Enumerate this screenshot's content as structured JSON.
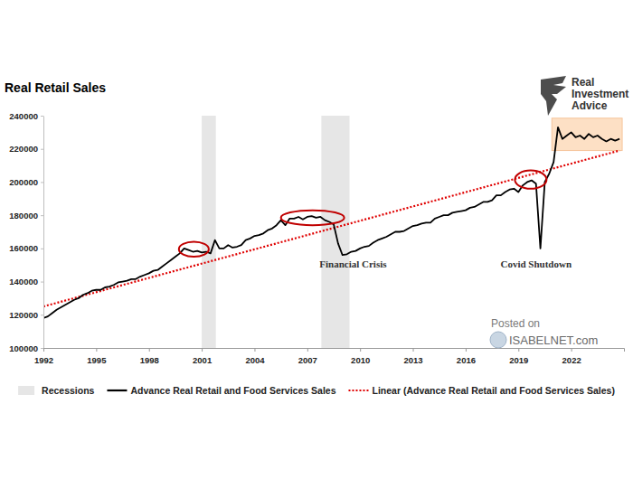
{
  "chart_data": {
    "type": "line",
    "title": "Real Retail Sales",
    "logo": [
      "Real",
      "Investment",
      "Advice"
    ],
    "watermark": [
      "Posted on",
      "ISABELNET.com"
    ],
    "x": [
      1992,
      1992.25,
      1992.5,
      1992.75,
      1993,
      1993.25,
      1993.5,
      1993.75,
      1994,
      1994.25,
      1994.5,
      1994.75,
      1995,
      1995.25,
      1995.5,
      1995.75,
      1996,
      1996.25,
      1996.5,
      1996.75,
      1997,
      1997.25,
      1997.5,
      1997.75,
      1998,
      1998.25,
      1998.5,
      1998.75,
      1999,
      1999.25,
      1999.5,
      1999.75,
      2000,
      2000.25,
      2000.5,
      2000.75,
      2001,
      2001.25,
      2001.5,
      2001.75,
      2002,
      2002.25,
      2002.5,
      2002.75,
      2003,
      2003.25,
      2003.5,
      2003.75,
      2004,
      2004.25,
      2004.5,
      2004.75,
      2005,
      2005.25,
      2005.5,
      2005.75,
      2006,
      2006.25,
      2006.5,
      2006.75,
      2007,
      2007.25,
      2007.5,
      2007.75,
      2008,
      2008.25,
      2008.5,
      2008.75,
      2009,
      2009.25,
      2009.5,
      2009.75,
      2010,
      2010.25,
      2010.5,
      2010.75,
      2011,
      2011.25,
      2011.5,
      2011.75,
      2012,
      2012.25,
      2012.5,
      2012.75,
      2013,
      2013.25,
      2013.5,
      2013.75,
      2014,
      2014.25,
      2014.5,
      2014.75,
      2015,
      2015.25,
      2015.5,
      2015.75,
      2016,
      2016.25,
      2016.5,
      2016.75,
      2017,
      2017.25,
      2017.5,
      2017.75,
      2018,
      2018.25,
      2018.5,
      2018.75,
      2019,
      2019.25,
      2019.5,
      2019.75,
      2020,
      2020.25,
      2020.5,
      2020.75,
      2021,
      2021.25,
      2021.5,
      2021.75,
      2022,
      2022.25,
      2022.5,
      2022.75,
      2023,
      2023.25,
      2023.5,
      2023.75,
      2024,
      2024.25,
      2024.5,
      2024.75
    ],
    "series": [
      {
        "name": "Advance Real Retail and Food Services Sales",
        "color": "#000000",
        "line_style": "solid",
        "values": [
          118000,
          119000,
          121000,
          123000,
          124500,
          126000,
          127500,
          129000,
          130000,
          132000,
          133000,
          134500,
          135000,
          135000,
          136500,
          137000,
          138000,
          139500,
          140000,
          140500,
          141500,
          141500,
          143000,
          144000,
          145000,
          146500,
          147000,
          149000,
          151000,
          153000,
          155000,
          157000,
          160000,
          159000,
          158000,
          158500,
          157500,
          158000,
          157000,
          165000,
          160000,
          160000,
          162000,
          160500,
          161000,
          162000,
          165000,
          166000,
          167500,
          168000,
          169000,
          171000,
          172000,
          174000,
          177000,
          174000,
          178000,
          178000,
          179000,
          177500,
          179000,
          179500,
          178500,
          179000,
          177000,
          176000,
          174500,
          163000,
          156000,
          156500,
          158000,
          158500,
          160000,
          161000,
          161500,
          163500,
          165000,
          166000,
          167000,
          168500,
          170000,
          170000,
          170500,
          172000,
          173500,
          174000,
          175000,
          175500,
          175500,
          178000,
          179000,
          180000,
          180000,
          181500,
          182000,
          182500,
          183000,
          184500,
          185000,
          186500,
          188000,
          188000,
          189000,
          192000,
          192000,
          194000,
          195500,
          196000,
          194000,
          198000,
          200000,
          201000,
          199000,
          160000,
          200000,
          205000,
          212000,
          233000,
          226000,
          228000,
          230000,
          227000,
          228000,
          226000,
          229000,
          227000,
          228000,
          226000,
          224500,
          226000,
          225000,
          226000
        ]
      },
      {
        "name": "Linear (Advance Real Retail and Food Services Sales)",
        "color": "#e00000",
        "line_style": "dotted",
        "x": [
          1992,
          2024.75
        ],
        "values": [
          125000,
          219000
        ]
      }
    ],
    "recessions": {
      "name": "Recessions",
      "color": "#e6e6e6",
      "periods": [
        [
          2001.0,
          2001.8
        ],
        [
          2007.8,
          2009.4
        ]
      ]
    },
    "annotations": [
      {
        "text": "Financial Crisis",
        "x": 2009.6,
        "y": 148500
      },
      {
        "text": "Covid Shutdown",
        "x": 2020.0,
        "y": 148500
      }
    ],
    "ellipses": [
      {
        "x": [
          1999.7,
          2001.4
        ],
        "y": [
          155000,
          164000
        ],
        "color": "#c00000"
      },
      {
        "x": [
          2005.5,
          2009.1
        ],
        "y": [
          174000,
          183000
        ],
        "color": "#c00000"
      },
      {
        "x": [
          2018.8,
          2020.6
        ],
        "y": [
          196000,
          207000
        ],
        "color": "#c00000"
      }
    ],
    "highlight_box": {
      "x": [
        2020.9,
        2024.9
      ],
      "y": [
        219000,
        238500
      ],
      "color": "#fde0c5"
    },
    "xlim": [
      1992,
      2025
    ],
    "xticks": [
      1992,
      1995,
      1998,
      2001,
      2004,
      2007,
      2010,
      2013,
      2016,
      2019,
      2022
    ],
    "ylim": [
      100000,
      240000
    ],
    "yticks": [
      100000,
      120000,
      140000,
      160000,
      180000,
      200000,
      220000,
      240000
    ],
    "grid": false,
    "legend": "bottom"
  }
}
